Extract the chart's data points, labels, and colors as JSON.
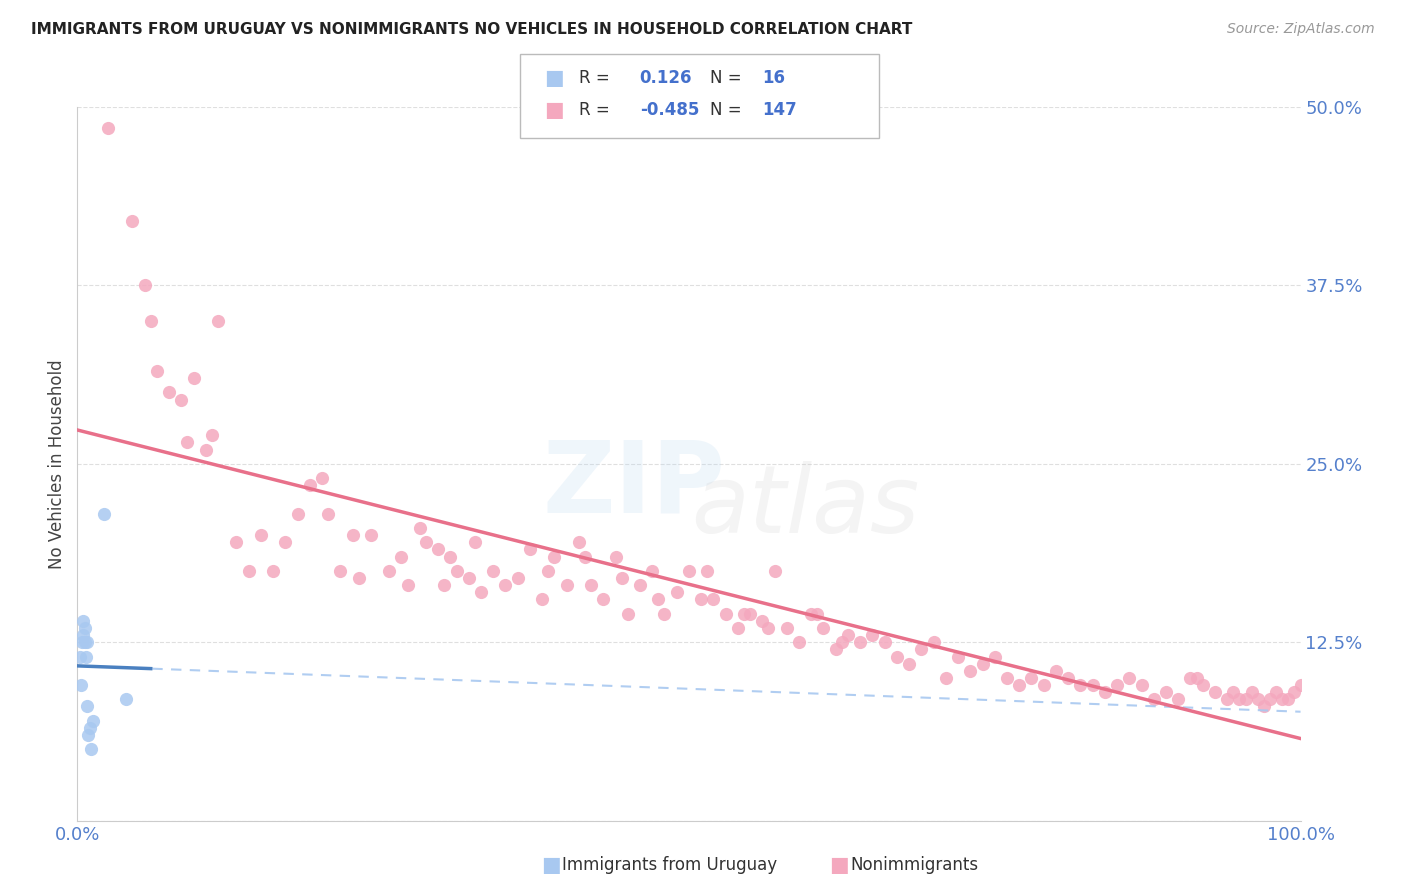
{
  "title": "IMMIGRANTS FROM URUGUAY VS NONIMMIGRANTS NO VEHICLES IN HOUSEHOLD CORRELATION CHART",
  "source": "Source: ZipAtlas.com",
  "ylabel": "No Vehicles in Household",
  "legend_blue_label": "Immigrants from Uruguay",
  "legend_pink_label": "Nonimmigrants",
  "blue_R": 0.126,
  "blue_N": 16,
  "pink_R": -0.485,
  "pink_N": 147,
  "xlim": [
    0.0,
    1.0
  ],
  "ylim": [
    0.0,
    0.5
  ],
  "blue_color": "#A8C8F0",
  "pink_color": "#F4A8BE",
  "blue_line_solid_color": "#4A80C0",
  "blue_line_dash_color": "#A8C8F0",
  "pink_line_color": "#E8708A",
  "grid_color": "#D8D8D8",
  "blue_x": [
    0.002,
    0.003,
    0.004,
    0.005,
    0.005,
    0.006,
    0.006,
    0.007,
    0.008,
    0.008,
    0.009,
    0.01,
    0.011,
    0.013,
    0.022,
    0.04
  ],
  "blue_y": [
    0.115,
    0.095,
    0.125,
    0.13,
    0.14,
    0.135,
    0.125,
    0.115,
    0.125,
    0.08,
    0.06,
    0.065,
    0.05,
    0.07,
    0.215,
    0.085
  ],
  "pink_x": [
    0.025,
    0.045,
    0.055,
    0.06,
    0.065,
    0.075,
    0.085,
    0.09,
    0.095,
    0.105,
    0.11,
    0.115,
    0.13,
    0.14,
    0.15,
    0.16,
    0.17,
    0.18,
    0.19,
    0.2,
    0.205,
    0.215,
    0.225,
    0.23,
    0.24,
    0.255,
    0.265,
    0.27,
    0.28,
    0.285,
    0.295,
    0.3,
    0.305,
    0.31,
    0.32,
    0.325,
    0.33,
    0.34,
    0.35,
    0.36,
    0.37,
    0.38,
    0.385,
    0.39,
    0.4,
    0.41,
    0.415,
    0.42,
    0.43,
    0.44,
    0.445,
    0.45,
    0.46,
    0.47,
    0.475,
    0.48,
    0.49,
    0.5,
    0.51,
    0.515,
    0.52,
    0.53,
    0.54,
    0.545,
    0.55,
    0.56,
    0.565,
    0.57,
    0.58,
    0.59,
    0.6,
    0.605,
    0.61,
    0.62,
    0.625,
    0.63,
    0.64,
    0.65,
    0.66,
    0.67,
    0.68,
    0.69,
    0.7,
    0.71,
    0.72,
    0.73,
    0.74,
    0.75,
    0.76,
    0.77,
    0.78,
    0.79,
    0.8,
    0.81,
    0.82,
    0.83,
    0.84,
    0.85,
    0.86,
    0.87,
    0.88,
    0.89,
    0.9,
    0.91,
    0.915,
    0.92,
    0.93,
    0.94,
    0.945,
    0.95,
    0.955,
    0.96,
    0.965,
    0.97,
    0.975,
    0.98,
    0.985,
    0.99,
    0.995,
    1.0
  ],
  "pink_y": [
    0.485,
    0.42,
    0.375,
    0.35,
    0.315,
    0.3,
    0.295,
    0.265,
    0.31,
    0.26,
    0.27,
    0.35,
    0.195,
    0.175,
    0.2,
    0.175,
    0.195,
    0.215,
    0.235,
    0.24,
    0.215,
    0.175,
    0.2,
    0.17,
    0.2,
    0.175,
    0.185,
    0.165,
    0.205,
    0.195,
    0.19,
    0.165,
    0.185,
    0.175,
    0.17,
    0.195,
    0.16,
    0.175,
    0.165,
    0.17,
    0.19,
    0.155,
    0.175,
    0.185,
    0.165,
    0.195,
    0.185,
    0.165,
    0.155,
    0.185,
    0.17,
    0.145,
    0.165,
    0.175,
    0.155,
    0.145,
    0.16,
    0.175,
    0.155,
    0.175,
    0.155,
    0.145,
    0.135,
    0.145,
    0.145,
    0.14,
    0.135,
    0.175,
    0.135,
    0.125,
    0.145,
    0.145,
    0.135,
    0.12,
    0.125,
    0.13,
    0.125,
    0.13,
    0.125,
    0.115,
    0.11,
    0.12,
    0.125,
    0.1,
    0.115,
    0.105,
    0.11,
    0.115,
    0.1,
    0.095,
    0.1,
    0.095,
    0.105,
    0.1,
    0.095,
    0.095,
    0.09,
    0.095,
    0.1,
    0.095,
    0.085,
    0.09,
    0.085,
    0.1,
    0.1,
    0.095,
    0.09,
    0.085,
    0.09,
    0.085,
    0.085,
    0.09,
    0.085,
    0.08,
    0.085,
    0.09,
    0.085,
    0.085,
    0.09,
    0.095
  ]
}
